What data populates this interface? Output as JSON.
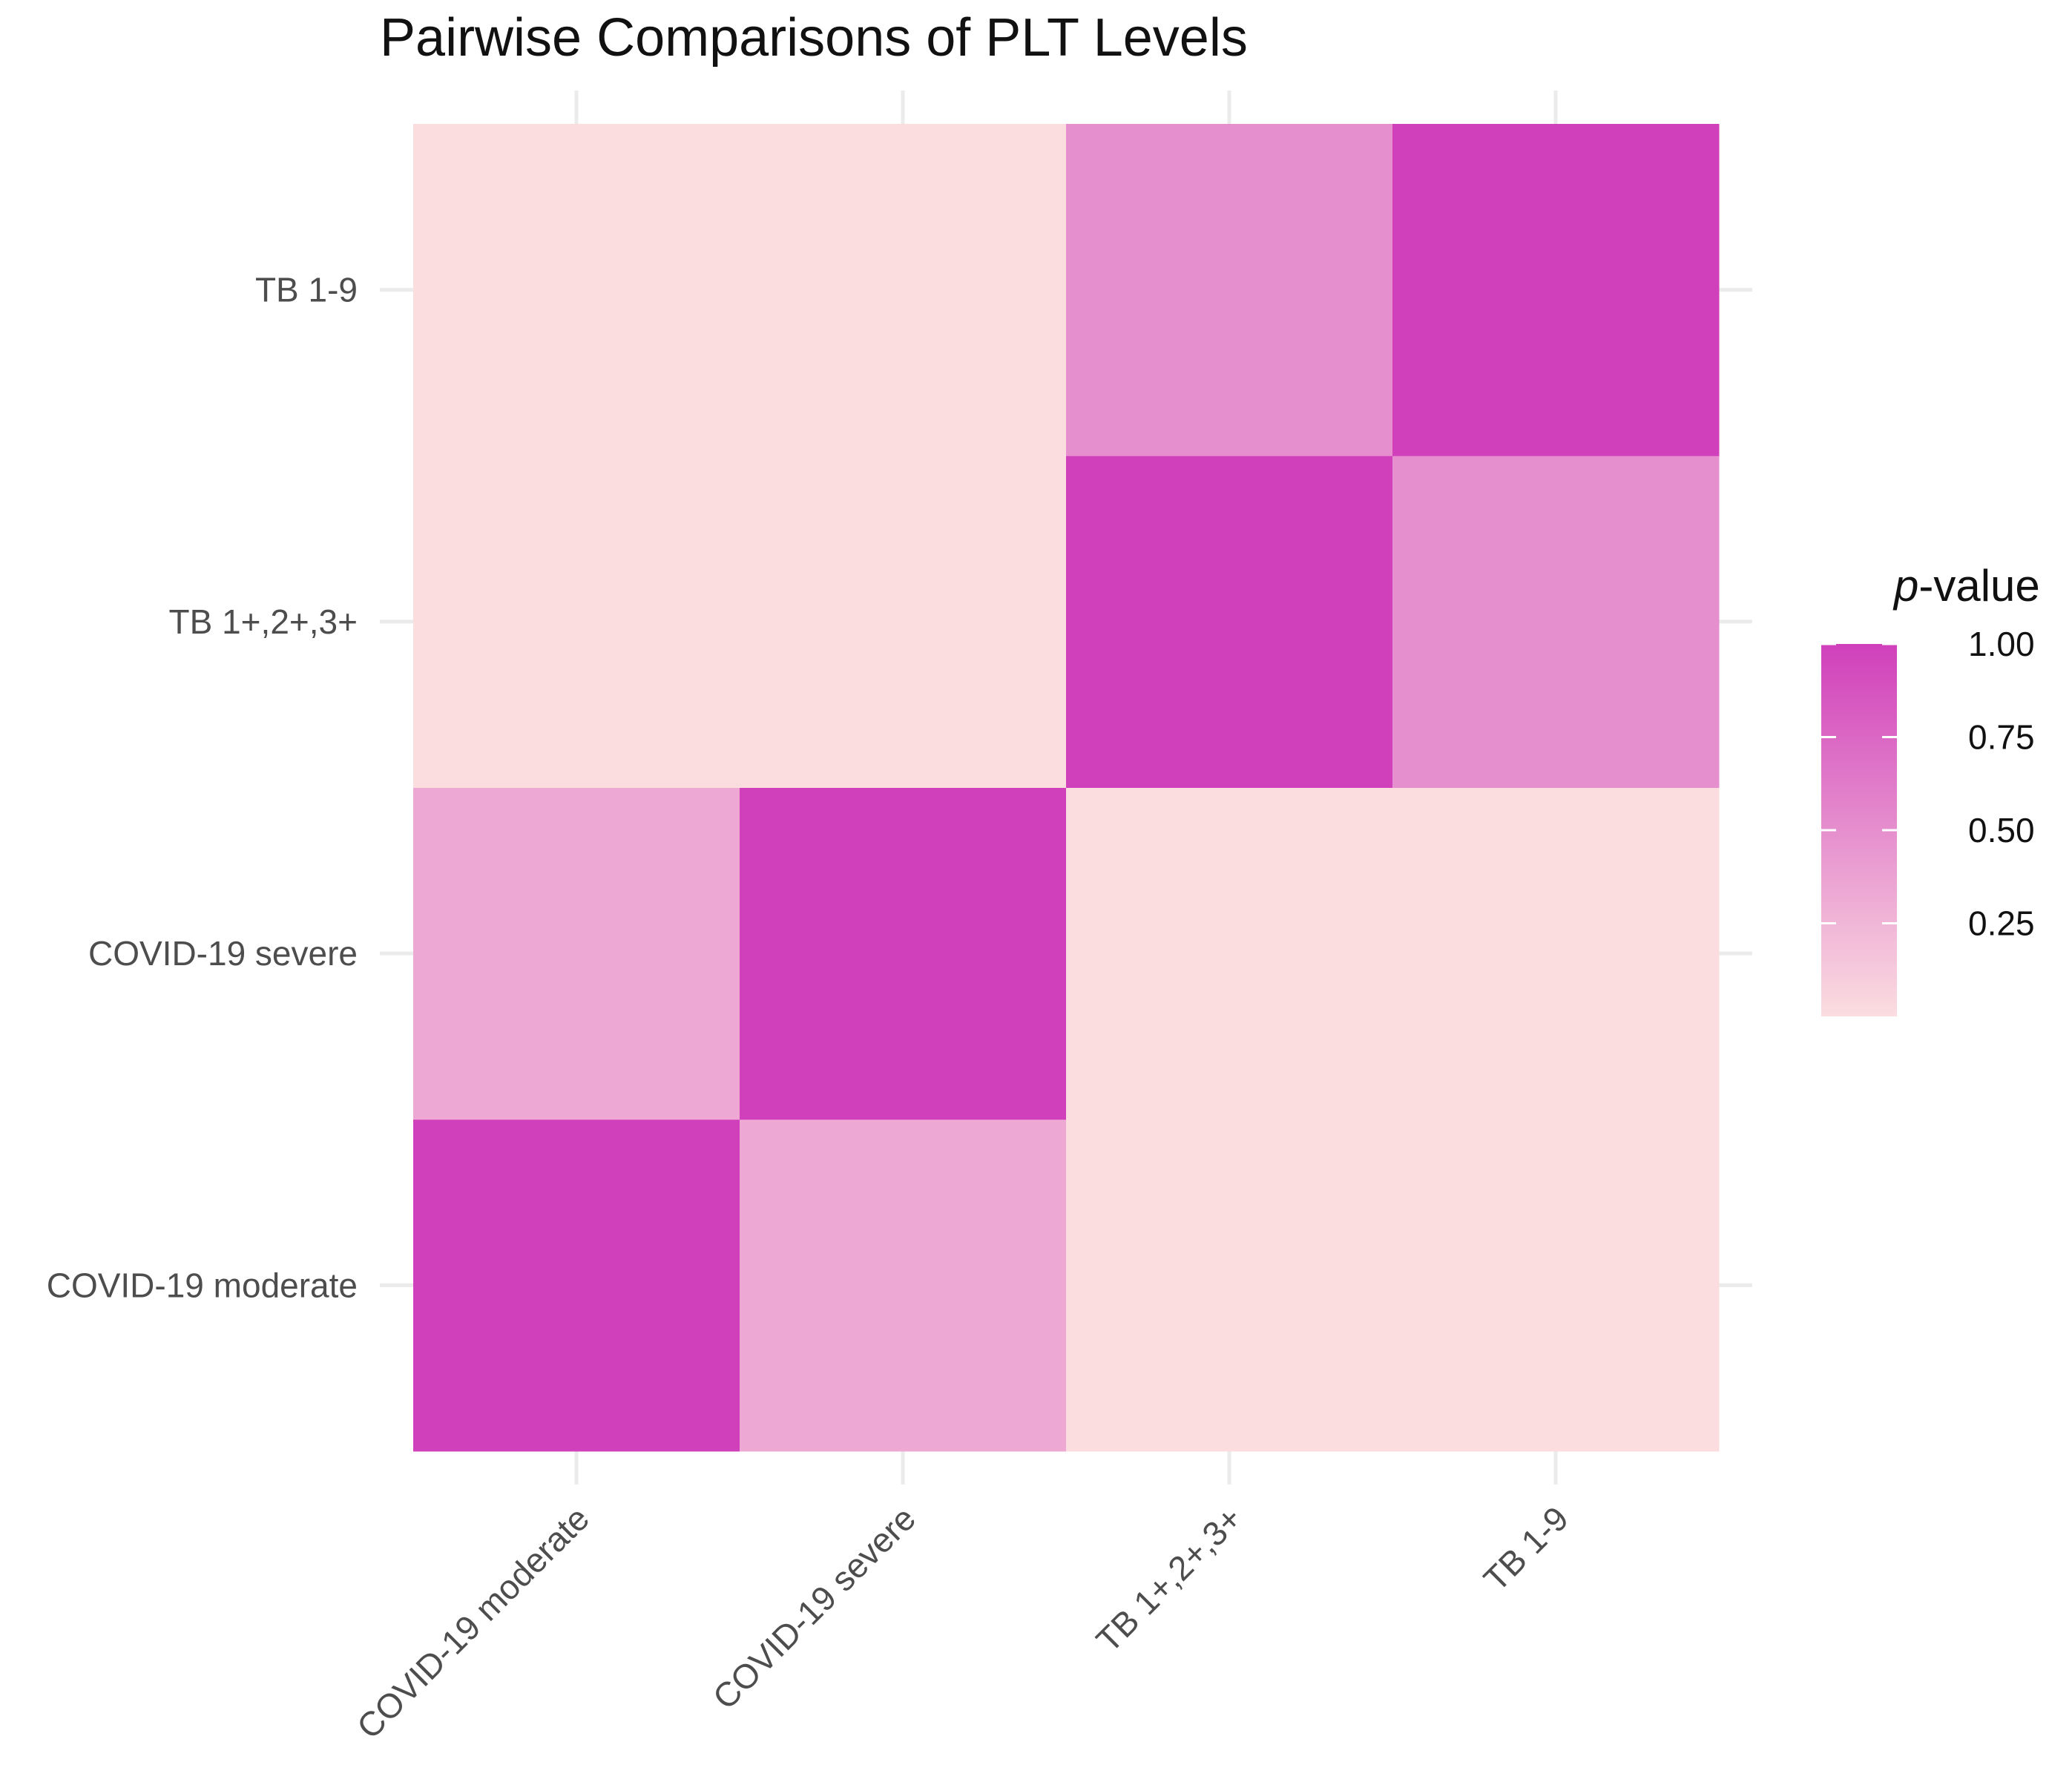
{
  "chart_data": {
    "type": "heatmap",
    "title": "Pairwise Comparisons of PLT Levels",
    "xlabel": "",
    "ylabel": "",
    "x_categories": [
      "COVID-19 moderate",
      "COVID-19 severe",
      "TB 1+,2+,3+",
      "TB 1-9"
    ],
    "y_categories": [
      "COVID-19 moderate",
      "COVID-19 severe",
      "TB 1+,2+,3+",
      "TB 1-9"
    ],
    "cells": [
      {
        "x": "COVID-19 moderate",
        "y": "COVID-19 moderate",
        "value": 1.0
      },
      {
        "x": "COVID-19 severe",
        "y": "COVID-19 moderate",
        "value": 0.33
      },
      {
        "x": "TB 1+,2+,3+",
        "y": "COVID-19 moderate",
        "value": 0.0
      },
      {
        "x": "TB 1-9",
        "y": "COVID-19 moderate",
        "value": 0.0
      },
      {
        "x": "COVID-19 moderate",
        "y": "COVID-19 severe",
        "value": 0.33
      },
      {
        "x": "COVID-19 severe",
        "y": "COVID-19 severe",
        "value": 1.0
      },
      {
        "x": "TB 1+,2+,3+",
        "y": "COVID-19 severe",
        "value": 0.0
      },
      {
        "x": "TB 1-9",
        "y": "COVID-19 severe",
        "value": 0.0
      },
      {
        "x": "COVID-19 moderate",
        "y": "TB 1+,2+,3+",
        "value": 0.0
      },
      {
        "x": "COVID-19 severe",
        "y": "TB 1+,2+,3+",
        "value": 0.0
      },
      {
        "x": "TB 1+,2+,3+",
        "y": "TB 1+,2+,3+",
        "value": 1.0
      },
      {
        "x": "TB 1-9",
        "y": "TB 1+,2+,3+",
        "value": 0.5
      },
      {
        "x": "COVID-19 moderate",
        "y": "TB 1-9",
        "value": 0.0
      },
      {
        "x": "COVID-19 severe",
        "y": "TB 1-9",
        "value": 0.0
      },
      {
        "x": "TB 1+,2+,3+",
        "y": "TB 1-9",
        "value": 0.5
      },
      {
        "x": "TB 1-9",
        "y": "TB 1-9",
        "value": 1.0
      }
    ],
    "legend": {
      "title_prefix": "p",
      "title_suffix": "-value",
      "ticks": [
        "1.00",
        "0.75",
        "0.50",
        "0.25"
      ],
      "tick_values": [
        1.0,
        0.75,
        0.5,
        0.25
      ],
      "range": [
        0.0,
        1.0
      ],
      "low_color": "#fbdde0",
      "high_color": "#d040bb",
      "position": "right"
    },
    "grid": true
  }
}
